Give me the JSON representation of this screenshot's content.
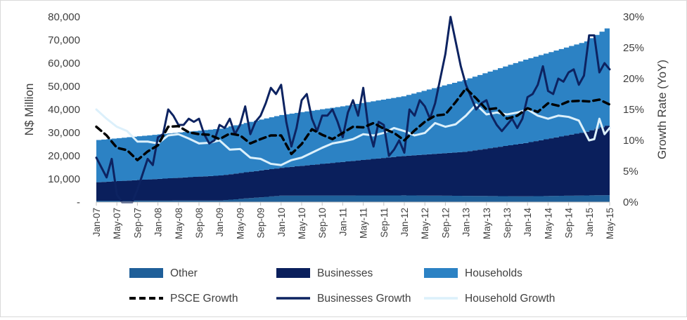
{
  "chart_data": {
    "type": "area",
    "title": "",
    "ylabel": "N$ Million",
    "y2label": "Growth Rate (YoY)",
    "ylim": [
      0,
      80000
    ],
    "y2lim": [
      0,
      30
    ],
    "yticks": [
      "-",
      "10,000",
      "20,000",
      "30,000",
      "40,000",
      "50,000",
      "60,000",
      "70,000",
      "80,000"
    ],
    "y2ticks": [
      "0%",
      "5%",
      "10%",
      "15%",
      "20%",
      "25%",
      "30%"
    ],
    "x_start": "Jan-07",
    "x_end": "May-15",
    "xticks": [
      "Jan-07",
      "May-07",
      "Sep-07",
      "Jan-08",
      "May-08",
      "Sep-08",
      "Jan-09",
      "May-09",
      "Sep-09",
      "Jan-10",
      "May-10",
      "Sep-10",
      "Jan-11",
      "May-11",
      "Sep-11",
      "Jan-12",
      "May-12",
      "Sep-12",
      "Jan-13",
      "May-13",
      "Sep-13",
      "Jan-14",
      "May-14",
      "Sep-14",
      "Jan-15",
      "May-15"
    ],
    "legend_position": "bottom",
    "colors": {
      "other": "#1f5f99",
      "businesses": "#0a1f5c",
      "households": "#2c82c4",
      "psce_growth": "#000000",
      "businesses_growth": "#0d2361",
      "household_growth": "#dcf0fb"
    },
    "stacked_series": [
      {
        "name": "Other",
        "axis": "left",
        "x": [
          "Jan-07",
          "Jan-09",
          "Jan-10",
          "Jan-12",
          "Jan-14",
          "May-15"
        ],
        "values": [
          600,
          700,
          2800,
          2900,
          2500,
          3000
        ]
      },
      {
        "name": "Businesses",
        "axis": "left",
        "x": [
          "Jan-07",
          "Jan-09",
          "Jan-10",
          "Jan-11",
          "Jan-12",
          "Jan-13",
          "Jan-14",
          "Jan-15",
          "May-15"
        ],
        "values": [
          8000,
          10800,
          12000,
          14500,
          17000,
          19000,
          23000,
          27500,
          30000
        ]
      },
      {
        "name": "Households",
        "axis": "left",
        "x": [
          "Jan-07",
          "Jan-08",
          "Jan-09",
          "Jan-10",
          "Jan-11",
          "Jan-12",
          "Jan-13",
          "Jan-14",
          "Jan-15",
          "May-15"
        ],
        "values": [
          18200,
          19200,
          20200,
          22800,
          24000,
          25800,
          31000,
          36000,
          39000,
          42000
        ]
      }
    ],
    "line_series": [
      {
        "name": "PSCE Growth",
        "axis": "right",
        "style": "dashed",
        "x": [
          "Jan-07",
          "Mar-07",
          "May-07",
          "Jul-07",
          "Sep-07",
          "Nov-07",
          "Jan-08",
          "Mar-08",
          "May-08",
          "Jul-08",
          "Sep-08",
          "Nov-08",
          "Jan-09",
          "Mar-09",
          "May-09",
          "Jul-09",
          "Sep-09",
          "Nov-09",
          "Jan-10",
          "Mar-10",
          "May-10",
          "Jul-10",
          "Sep-10",
          "Nov-10",
          "Jan-11",
          "Mar-11",
          "May-11",
          "Jul-11",
          "Sep-11",
          "Nov-11",
          "Jan-12",
          "Mar-12",
          "May-12",
          "Jul-12",
          "Sep-12",
          "Nov-12",
          "Jan-13",
          "Mar-13",
          "May-13",
          "Jul-13",
          "Sep-13",
          "Nov-13",
          "Jan-14",
          "Mar-14",
          "May-14",
          "Jul-14",
          "Sep-14",
          "Nov-14",
          "Jan-15",
          "Mar-15",
          "May-15"
        ],
        "values": [
          12.2,
          10.8,
          8.8,
          8.4,
          6.8,
          8.2,
          9.2,
          12.2,
          12.3,
          11.3,
          11.0,
          10.9,
          10.2,
          11.1,
          10.8,
          9.5,
          10.2,
          10.8,
          10.8,
          7.8,
          9.4,
          11.8,
          10.9,
          10.2,
          11.2,
          12.2,
          12.1,
          12.8,
          11.9,
          11.2,
          10.0,
          11.6,
          13.0,
          14.0,
          14.2,
          16.2,
          18.4,
          16.8,
          15.0,
          15.2,
          13.5,
          14.0,
          15.2,
          14.6,
          16.0,
          15.6,
          16.3,
          16.4,
          16.3,
          16.6,
          15.8
        ]
      },
      {
        "name": "Businesses Growth",
        "axis": "right",
        "style": "solid",
        "x": [
          "Jan-07",
          "Mar-07",
          "Apr-07",
          "May-07",
          "Jun-07",
          "Jul-07",
          "Aug-07",
          "Sep-07",
          "Oct-07",
          "Nov-07",
          "Dec-07",
          "Jan-08",
          "Feb-08",
          "Mar-08",
          "Apr-08",
          "May-08",
          "Jun-08",
          "Jul-08",
          "Aug-08",
          "Sep-08",
          "Oct-08",
          "Nov-08",
          "Dec-08",
          "Jan-09",
          "Feb-09",
          "Mar-09",
          "Apr-09",
          "May-09",
          "Jun-09",
          "Jul-09",
          "Aug-09",
          "Sep-09",
          "Oct-09",
          "Nov-09",
          "Dec-09",
          "Jan-10",
          "Feb-10",
          "Mar-10",
          "Apr-10",
          "May-10",
          "Jun-10",
          "Jul-10",
          "Aug-10",
          "Sep-10",
          "Oct-10",
          "Nov-10",
          "Dec-10",
          "Jan-11",
          "Feb-11",
          "Mar-11",
          "Apr-11",
          "May-11",
          "Jun-11",
          "Jul-11",
          "Aug-11",
          "Sep-11",
          "Oct-11",
          "Nov-11",
          "Dec-11",
          "Jan-12",
          "Feb-12",
          "Mar-12",
          "Apr-12",
          "May-12",
          "Jun-12",
          "Jul-12",
          "Aug-12",
          "Sep-12",
          "Oct-12",
          "Nov-12",
          "Dec-12",
          "Jan-13",
          "Feb-13",
          "Mar-13",
          "Apr-13",
          "May-13",
          "Jun-13",
          "Jul-13",
          "Aug-13",
          "Sep-13",
          "Oct-13",
          "Nov-13",
          "Dec-13",
          "Jan-14",
          "Feb-14",
          "Mar-14",
          "Apr-14",
          "May-14",
          "Jun-14",
          "Jul-14",
          "Aug-14",
          "Sep-14",
          "Oct-14",
          "Nov-14",
          "Dec-14",
          "Jan-15",
          "Feb-15",
          "Mar-15",
          "Apr-15",
          "May-15"
        ],
        "values": [
          7.2,
          4.0,
          7.0,
          1.2,
          0.0,
          0.0,
          0.0,
          2.0,
          4.5,
          7.0,
          6.0,
          10.5,
          11.0,
          15.0,
          14.0,
          12.5,
          12.5,
          13.5,
          13.0,
          13.5,
          11.0,
          9.5,
          10.0,
          12.5,
          12.0,
          13.5,
          11.0,
          12.5,
          15.5,
          11.0,
          13.0,
          14.0,
          16.0,
          18.5,
          17.5,
          19.0,
          13.0,
          9.0,
          12.0,
          16.5,
          17.5,
          13.5,
          11.5,
          14.0,
          14.0,
          15.0,
          13.0,
          10.5,
          14.5,
          16.5,
          14.0,
          18.5,
          12.0,
          9.0,
          13.0,
          12.5,
          7.5,
          8.5,
          10.0,
          8.0,
          15.0,
          14.0,
          16.5,
          15.5,
          13.5,
          16.0,
          20.0,
          24.0,
          30.0,
          26.0,
          22.0,
          19.0,
          17.0,
          15.0,
          16.0,
          16.5,
          14.0,
          12.5,
          11.5,
          12.5,
          13.5,
          12.0,
          13.5,
          17.0,
          17.5,
          19.0,
          22.0,
          18.0,
          17.5,
          20.0,
          19.5,
          21.0,
          21.5,
          19.0,
          20.5,
          27.0,
          27.0,
          21.0,
          22.5,
          21.5
        ]
      },
      {
        "name": "Household Growth",
        "axis": "right",
        "style": "solid",
        "x": [
          "Jan-07",
          "Mar-07",
          "May-07",
          "Jul-07",
          "Sep-07",
          "Nov-07",
          "Jan-08",
          "Mar-08",
          "May-08",
          "Jul-08",
          "Sep-08",
          "Nov-08",
          "Jan-09",
          "Mar-09",
          "May-09",
          "Jul-09",
          "Sep-09",
          "Nov-09",
          "Jan-10",
          "Mar-10",
          "May-10",
          "Jul-10",
          "Sep-10",
          "Nov-10",
          "Jan-11",
          "Mar-11",
          "May-11",
          "Jul-11",
          "Sep-11",
          "Nov-11",
          "Jan-12",
          "Mar-12",
          "May-12",
          "Jul-12",
          "Sep-12",
          "Nov-12",
          "Jan-13",
          "Mar-13",
          "May-13",
          "Jul-13",
          "Sep-13",
          "Nov-13",
          "Jan-14",
          "Mar-14",
          "May-14",
          "Jul-14",
          "Sep-14",
          "Nov-14",
          "Jan-15",
          "Feb-15",
          "Mar-15",
          "Apr-15",
          "May-15"
        ],
        "values": [
          15.0,
          13.5,
          12.2,
          11.5,
          9.8,
          9.8,
          9.5,
          10.8,
          11.0,
          10.3,
          9.5,
          9.6,
          10.0,
          8.5,
          8.6,
          7.2,
          7.0,
          6.2,
          6.0,
          6.8,
          7.2,
          8.0,
          8.8,
          9.5,
          9.8,
          10.2,
          11.0,
          10.8,
          11.2,
          12.0,
          11.5,
          10.8,
          11.2,
          12.8,
          12.2,
          12.6,
          14.0,
          15.8,
          14.2,
          14.5,
          14.2,
          14.5,
          15.0,
          14.0,
          13.5,
          14.0,
          13.8,
          13.2,
          10.0,
          10.2,
          13.5,
          11.0,
          12.0
        ]
      }
    ]
  }
}
